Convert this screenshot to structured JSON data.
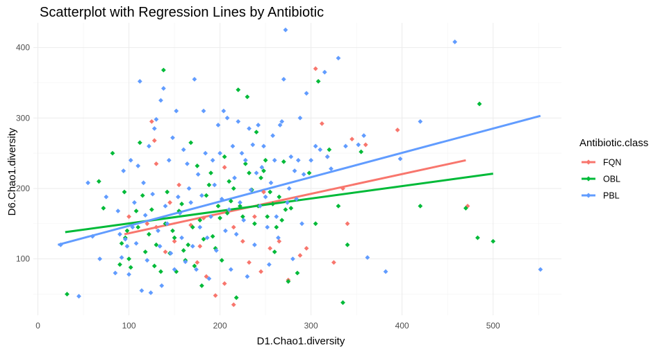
{
  "chart_data": {
    "type": "scatter",
    "title": "Scatterplot with Regression Lines by Antibiotic",
    "xlabel": "D1.Chao1.diversity",
    "ylabel": "D6.Chao1.diversity",
    "xlim": [
      -5,
      575
    ],
    "ylim": [
      20,
      435
    ],
    "x_ticks": [
      0,
      100,
      200,
      300,
      400,
      500
    ],
    "y_ticks": [
      100,
      200,
      300,
      400
    ],
    "x_tick_labels": [
      "0",
      "100",
      "200",
      "300",
      "400",
      "500"
    ],
    "y_tick_labels": [
      "100",
      "200",
      "300",
      "400"
    ],
    "grid": true,
    "legend_position": "right",
    "legend_title": "Antibiotic.class",
    "series": [
      {
        "name": "FQN",
        "color": "#F8766D",
        "line": {
          "x": [
            95,
            470
          ],
          "y": [
            135,
            240
          ]
        },
        "points": [
          [
            125,
            295
          ],
          [
            128,
            268
          ],
          [
            130,
            235
          ],
          [
            100,
            160
          ],
          [
            120,
            150
          ],
          [
            140,
            110
          ],
          [
            150,
            125
          ],
          [
            175,
            95
          ],
          [
            185,
            75
          ],
          [
            195,
            48
          ],
          [
            205,
            65
          ],
          [
            215,
            35
          ],
          [
            225,
            125
          ],
          [
            232,
            95
          ],
          [
            245,
            82
          ],
          [
            255,
            115
          ],
          [
            275,
            70
          ],
          [
            288,
            105
          ],
          [
            305,
            370
          ],
          [
            312,
            292
          ],
          [
            318,
            245
          ],
          [
            325,
            95
          ],
          [
            335,
            200
          ],
          [
            340,
            150
          ],
          [
            345,
            270
          ],
          [
            360,
            262
          ],
          [
            395,
            283
          ],
          [
            472,
            175
          ],
          [
            168,
            148
          ],
          [
            182,
            158
          ],
          [
            205,
            230
          ],
          [
            238,
            160
          ],
          [
            248,
            195
          ],
          [
            265,
            125
          ],
          [
            295,
            115
          ],
          [
            145,
            180
          ],
          [
            155,
            205
          ],
          [
            130,
            145
          ],
          [
            215,
            145
          ],
          [
            178,
            118
          ]
        ]
      },
      {
        "name": "OBL",
        "color": "#00BA38",
        "line": {
          "x": [
            30,
            500
          ],
          "y": [
            138,
            221
          ]
        },
        "points": [
          [
            32,
            50
          ],
          [
            67,
            210
          ],
          [
            72,
            172
          ],
          [
            82,
            250
          ],
          [
            90,
            92
          ],
          [
            92,
            122
          ],
          [
            95,
            195
          ],
          [
            96,
            130
          ],
          [
            98,
            140
          ],
          [
            100,
            100
          ],
          [
            102,
            88
          ],
          [
            108,
            168
          ],
          [
            110,
            145
          ],
          [
            112,
            265
          ],
          [
            115,
            190
          ],
          [
            118,
            110
          ],
          [
            122,
            135
          ],
          [
            125,
            170
          ],
          [
            128,
            90
          ],
          [
            130,
            120
          ],
          [
            135,
            82
          ],
          [
            138,
            368
          ],
          [
            140,
            150
          ],
          [
            142,
            195
          ],
          [
            145,
            108
          ],
          [
            148,
            140
          ],
          [
            150,
            130
          ],
          [
            152,
            82
          ],
          [
            155,
            168
          ],
          [
            158,
            178
          ],
          [
            160,
            112
          ],
          [
            162,
            98
          ],
          [
            165,
            120
          ],
          [
            168,
            265
          ],
          [
            170,
            145
          ],
          [
            172,
            90
          ],
          [
            175,
            232
          ],
          [
            178,
            155
          ],
          [
            180,
            62
          ],
          [
            182,
            128
          ],
          [
            185,
            190
          ],
          [
            188,
            205
          ],
          [
            190,
            222
          ],
          [
            192,
            132
          ],
          [
            195,
            115
          ],
          [
            198,
            175
          ],
          [
            200,
            158
          ],
          [
            202,
            98
          ],
          [
            205,
            245
          ],
          [
            208,
            165
          ],
          [
            210,
            210
          ],
          [
            212,
            182
          ],
          [
            215,
            200
          ],
          [
            218,
            45
          ],
          [
            220,
            340
          ],
          [
            222,
            175
          ],
          [
            225,
            160
          ],
          [
            228,
            235
          ],
          [
            230,
            330
          ],
          [
            232,
            222
          ],
          [
            235,
            198
          ],
          [
            238,
            150
          ],
          [
            240,
            280
          ],
          [
            242,
            175
          ],
          [
            245,
            215
          ],
          [
            248,
            225
          ],
          [
            250,
            240
          ],
          [
            252,
            160
          ],
          [
            255,
            195
          ],
          [
            258,
            178
          ],
          [
            260,
            110
          ],
          [
            262,
            145
          ],
          [
            265,
            188
          ],
          [
            268,
            155
          ],
          [
            270,
            238
          ],
          [
            272,
            170
          ],
          [
            275,
            68
          ],
          [
            278,
            172
          ],
          [
            285,
            80
          ],
          [
            298,
            222
          ],
          [
            305,
            150
          ],
          [
            308,
            352
          ],
          [
            320,
            255
          ],
          [
            330,
            175
          ],
          [
            335,
            38
          ],
          [
            340,
            120
          ],
          [
            355,
            252
          ],
          [
            420,
            175
          ],
          [
            470,
            172
          ],
          [
            485,
            320
          ],
          [
            483,
            130
          ],
          [
            500,
            125
          ]
        ]
      },
      {
        "name": "PBL",
        "color": "#619CFF",
        "line": {
          "x": [
            22,
            552
          ],
          "y": [
            120,
            303
          ]
        },
        "points": [
          [
            25,
            120
          ],
          [
            45,
            47
          ],
          [
            55,
            208
          ],
          [
            60,
            132
          ],
          [
            68,
            100
          ],
          [
            75,
            188
          ],
          [
            85,
            80
          ],
          [
            88,
            168
          ],
          [
            90,
            135
          ],
          [
            92,
            102
          ],
          [
            94,
            225
          ],
          [
            96,
            128
          ],
          [
            98,
            118
          ],
          [
            100,
            78
          ],
          [
            102,
            240
          ],
          [
            104,
            145
          ],
          [
            106,
            180
          ],
          [
            108,
            122
          ],
          [
            110,
            232
          ],
          [
            112,
            352
          ],
          [
            114,
            55
          ],
          [
            116,
            208
          ],
          [
            118,
            162
          ],
          [
            120,
            98
          ],
          [
            122,
            260
          ],
          [
            124,
            52
          ],
          [
            126,
            192
          ],
          [
            128,
            285
          ],
          [
            130,
            298
          ],
          [
            132,
            140
          ],
          [
            134,
            118
          ],
          [
            135,
            325
          ],
          [
            136,
            62
          ],
          [
            138,
            342
          ],
          [
            140,
            175
          ],
          [
            142,
            150
          ],
          [
            144,
            240
          ],
          [
            146,
            108
          ],
          [
            148,
            272
          ],
          [
            150,
            85
          ],
          [
            152,
            310
          ],
          [
            154,
            188
          ],
          [
            156,
            165
          ],
          [
            158,
            130
          ],
          [
            160,
            255
          ],
          [
            162,
            96
          ],
          [
            164,
            235
          ],
          [
            166,
            200
          ],
          [
            168,
            180
          ],
          [
            170,
            118
          ],
          [
            172,
            355
          ],
          [
            174,
            85
          ],
          [
            176,
            220
          ],
          [
            178,
            145
          ],
          [
            180,
            190
          ],
          [
            182,
            310
          ],
          [
            184,
            250
          ],
          [
            186,
            130
          ],
          [
            188,
            72
          ],
          [
            190,
            160
          ],
          [
            192,
            240
          ],
          [
            194,
            205
          ],
          [
            196,
            112
          ],
          [
            198,
            290
          ],
          [
            200,
            250
          ],
          [
            202,
            185
          ],
          [
            204,
            310
          ],
          [
            206,
            140
          ],
          [
            208,
            300
          ],
          [
            210,
            170
          ],
          [
            212,
            85
          ],
          [
            214,
            260
          ],
          [
            216,
            215
          ],
          [
            218,
            135
          ],
          [
            220,
            295
          ],
          [
            222,
            180
          ],
          [
            224,
            250
          ],
          [
            226,
            155
          ],
          [
            228,
            240
          ],
          [
            230,
            75
          ],
          [
            232,
            285
          ],
          [
            234,
            198
          ],
          [
            236,
            262
          ],
          [
            238,
            120
          ],
          [
            240,
            222
          ],
          [
            242,
            290
          ],
          [
            244,
            175
          ],
          [
            246,
            230
          ],
          [
            248,
            260
          ],
          [
            250,
            188
          ],
          [
            252,
            145
          ],
          [
            254,
            92
          ],
          [
            256,
            208
          ],
          [
            258,
            275
          ],
          [
            260,
            240
          ],
          [
            262,
            160
          ],
          [
            264,
            130
          ],
          [
            266,
            290
          ],
          [
            268,
            295
          ],
          [
            270,
            355
          ],
          [
            272,
            425
          ],
          [
            274,
            180
          ],
          [
            276,
            200
          ],
          [
            278,
            245
          ],
          [
            280,
            100
          ],
          [
            282,
            225
          ],
          [
            284,
            185
          ],
          [
            286,
            240
          ],
          [
            288,
            300
          ],
          [
            290,
            150
          ],
          [
            292,
            220
          ],
          [
            295,
            335
          ],
          [
            300,
            240
          ],
          [
            305,
            260
          ],
          [
            310,
            255
          ],
          [
            315,
            365
          ],
          [
            318,
            245
          ],
          [
            322,
            228
          ],
          [
            330,
            385
          ],
          [
            338,
            260
          ],
          [
            352,
            262
          ],
          [
            358,
            275
          ],
          [
            362,
            102
          ],
          [
            382,
            82
          ],
          [
            398,
            242
          ],
          [
            420,
            295
          ],
          [
            458,
            408
          ],
          [
            552,
            85
          ]
        ]
      }
    ]
  }
}
